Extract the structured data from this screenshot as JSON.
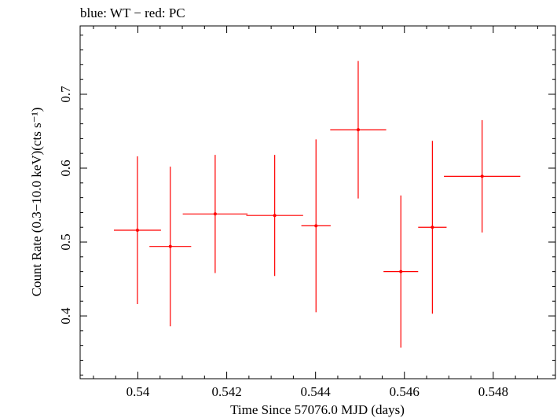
{
  "chart_data": {
    "type": "scatter",
    "title": "blue: WT − red: PC",
    "xlabel": "Time Since 57076.0 MJD (days)",
    "ylabel": "Count Rate (0.3−10.0 keV)(cts s⁻¹)",
    "xlim": [
      0.5387,
      0.5494
    ],
    "ylim": [
      0.315,
      0.7925
    ],
    "x_ticks": [
      0.54,
      0.542,
      0.544,
      0.546,
      0.548
    ],
    "x_tick_labels": [
      "0.54",
      "0.542",
      "0.544",
      "0.546",
      "0.548"
    ],
    "y_ticks": [
      0.4,
      0.5,
      0.6,
      0.7
    ],
    "y_tick_labels": [
      "0.4",
      "0.5",
      "0.6",
      "0.7"
    ],
    "grid": false,
    "series": [
      {
        "name": "PC",
        "color": "#ff0000",
        "points": [
          {
            "x": 0.53999,
            "y": 0.516,
            "xerr_lo": 0.00053,
            "xerr_hi": 0.00053,
            "yerr_lo": 0.1,
            "yerr_hi": 0.1
          },
          {
            "x": 0.54073,
            "y": 0.494,
            "xerr_lo": 0.00047,
            "xerr_hi": 0.00047,
            "yerr_lo": 0.108,
            "yerr_hi": 0.108
          },
          {
            "x": 0.54174,
            "y": 0.538,
            "xerr_lo": 0.00073,
            "xerr_hi": 0.00073,
            "yerr_lo": 0.08,
            "yerr_hi": 0.08
          },
          {
            "x": 0.54308,
            "y": 0.536,
            "xerr_lo": 0.00064,
            "xerr_hi": 0.00064,
            "yerr_lo": 0.082,
            "yerr_hi": 0.082
          },
          {
            "x": 0.54401,
            "y": 0.522,
            "xerr_lo": 0.00033,
            "xerr_hi": 0.00033,
            "yerr_lo": 0.117,
            "yerr_hi": 0.117
          },
          {
            "x": 0.54496,
            "y": 0.652,
            "xerr_lo": 0.00063,
            "xerr_hi": 0.00063,
            "yerr_lo": 0.093,
            "yerr_hi": 0.093
          },
          {
            "x": 0.54592,
            "y": 0.46,
            "xerr_lo": 0.00039,
            "xerr_hi": 0.00039,
            "yerr_lo": 0.103,
            "yerr_hi": 0.103
          },
          {
            "x": 0.54663,
            "y": 0.52,
            "xerr_lo": 0.00032,
            "xerr_hi": 0.00032,
            "yerr_lo": 0.117,
            "yerr_hi": 0.117
          },
          {
            "x": 0.54775,
            "y": 0.589,
            "xerr_lo": 0.00086,
            "xerr_hi": 0.00086,
            "yerr_lo": 0.076,
            "yerr_hi": 0.076
          }
        ]
      }
    ]
  }
}
